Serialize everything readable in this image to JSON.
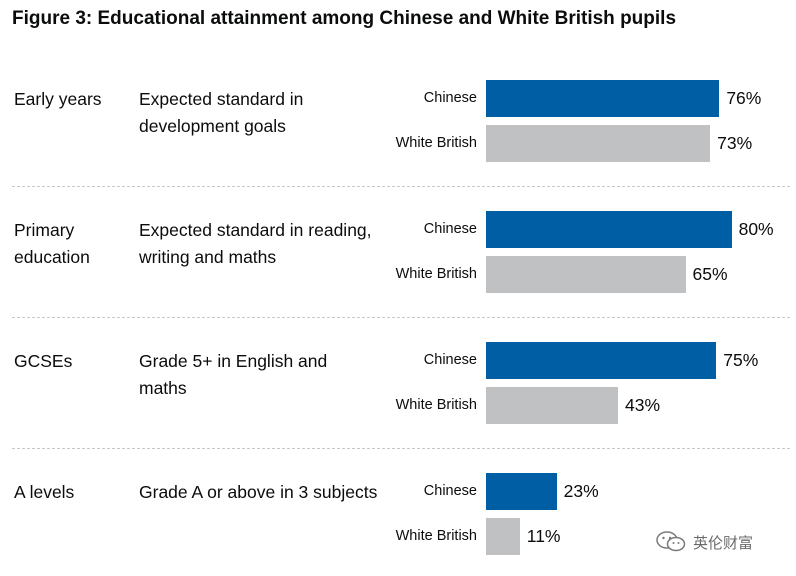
{
  "title": "Figure 3: Educational attainment among Chinese and White British pupils",
  "colors": {
    "chinese": "#005ea5",
    "white_british": "#bfc1c3",
    "separator": "#c8c8c8"
  },
  "chart_data": {
    "type": "bar",
    "orientation": "horizontal",
    "title": "Figure 3: Educational attainment among Chinese and White British pupils",
    "value_suffix": "%",
    "xlim": [
      0,
      100
    ],
    "grid": false,
    "groups": [
      {
        "stage": "Early years",
        "measure": "Expected standard in development goals",
        "bars": [
          {
            "label": "Chinese",
            "value": 76
          },
          {
            "label": "White British",
            "value": 73
          }
        ]
      },
      {
        "stage": "Primary education",
        "measure": "Expected standard in reading, writing and maths",
        "bars": [
          {
            "label": "Chinese",
            "value": 80
          },
          {
            "label": "White British",
            "value": 65
          }
        ]
      },
      {
        "stage": "GCSEs",
        "measure": "Grade 5+ in English and maths",
        "bars": [
          {
            "label": "Chinese",
            "value": 75
          },
          {
            "label": "White British",
            "value": 43
          }
        ]
      },
      {
        "stage": "A levels",
        "measure": "Grade A or above in 3 subjects",
        "bars": [
          {
            "label": "Chinese",
            "value": 23
          },
          {
            "label": "White British",
            "value": 11
          }
        ]
      }
    ]
  },
  "watermark": {
    "text": "英伦财富",
    "icon": "wechat-icon"
  }
}
